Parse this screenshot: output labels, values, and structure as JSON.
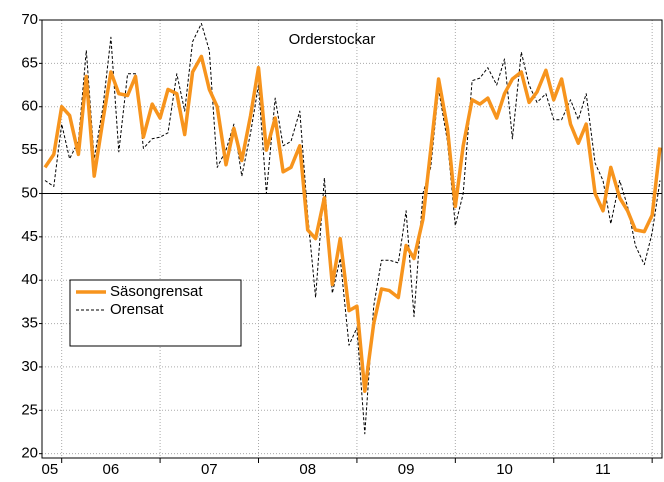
{
  "chart_data": {
    "type": "line",
    "title": "Orderstockar",
    "x": [
      2005.83,
      2005.92,
      2006.0,
      2006.08,
      2006.17,
      2006.25,
      2006.33,
      2006.42,
      2006.5,
      2006.58,
      2006.67,
      2006.75,
      2006.83,
      2006.92,
      2007.0,
      2007.08,
      2007.17,
      2007.25,
      2007.33,
      2007.42,
      2007.5,
      2007.58,
      2007.67,
      2007.75,
      2007.83,
      2007.92,
      2008.0,
      2008.08,
      2008.17,
      2008.25,
      2008.33,
      2008.42,
      2008.5,
      2008.58,
      2008.67,
      2008.75,
      2008.83,
      2008.92,
      2009.0,
      2009.08,
      2009.17,
      2009.25,
      2009.33,
      2009.42,
      2009.5,
      2009.58,
      2009.67,
      2009.75,
      2009.83,
      2009.92,
      2010.0,
      2010.08,
      2010.17,
      2010.25,
      2010.33,
      2010.42,
      2010.5,
      2010.58,
      2010.67,
      2010.75,
      2010.83,
      2010.92,
      2011.0,
      2011.08,
      2011.17,
      2011.25,
      2011.33,
      2011.42,
      2011.5,
      2011.58,
      2011.67,
      2011.75,
      2011.83,
      2011.92,
      2012.0,
      2012.08
    ],
    "series": [
      {
        "name": "Säsongrensat",
        "color": "#f7941d",
        "dash": false,
        "width": 3.5,
        "values": [
          53,
          54.5,
          60,
          59,
          54.5,
          63.5,
          52,
          58.5,
          64,
          61.5,
          61.3,
          63.5,
          56.5,
          60.3,
          58.7,
          62,
          61.5,
          56.8,
          64,
          65.8,
          62,
          60,
          53.3,
          57.5,
          53.8,
          59,
          64.5,
          55,
          58.7,
          52.5,
          53,
          55.5,
          45.8,
          44.8,
          49.5,
          39.5,
          44.8,
          36.5,
          37,
          27.2,
          35,
          39,
          38.8,
          38,
          44,
          42.5,
          47,
          55,
          63.2,
          57.5,
          48.5,
          55.5,
          60.8,
          60.3,
          61,
          58.7,
          61.5,
          63.2,
          64,
          60.5,
          61.7,
          64.2,
          60.8,
          63.2,
          58,
          55.8,
          58,
          50,
          48,
          53,
          49.5,
          48,
          45.8,
          45.6,
          47.5,
          55.3
        ]
      },
      {
        "name": "Orensat",
        "color": "#000000",
        "dash": true,
        "width": 1,
        "values": [
          51.5,
          50.8,
          58,
          54,
          56,
          66.5,
          54,
          60,
          68,
          54.8,
          63.8,
          63.8,
          55.2,
          56.3,
          56.5,
          57,
          63.8,
          59.5,
          67.5,
          69.6,
          66.5,
          53,
          55,
          58,
          52,
          57,
          62.5,
          50,
          61,
          55.5,
          56,
          59.5,
          47.5,
          38,
          51.8,
          38.5,
          42.5,
          32.5,
          34.5,
          22.3,
          37,
          42.3,
          42.3,
          42,
          48,
          35.8,
          50,
          53,
          62,
          56,
          46.3,
          50,
          63,
          63.3,
          64.5,
          62.5,
          65.5,
          56.3,
          66.3,
          62.5,
          60.5,
          61.5,
          58.5,
          58.5,
          60.8,
          58.5,
          61.5,
          53.5,
          51.5,
          46.5,
          51.5,
          48.5,
          44,
          41.8,
          45.5,
          51.5
        ]
      }
    ],
    "xlim": [
      2005.8,
      2012.1
    ],
    "xticks": [
      {
        "value": 2005.88,
        "label": "05"
      },
      {
        "value": 2006.5,
        "label": "06"
      },
      {
        "value": 2007.5,
        "label": "07"
      },
      {
        "value": 2008.5,
        "label": "08"
      },
      {
        "value": 2009.5,
        "label": "09"
      },
      {
        "value": 2010.5,
        "label": "10"
      },
      {
        "value": 2011.5,
        "label": "11"
      }
    ],
    "xgrid": [
      2006,
      2007,
      2008,
      2009,
      2010,
      2011,
      2012
    ],
    "ylim": [
      19.5,
      70
    ],
    "yticks": [
      20,
      25,
      30,
      35,
      40,
      45,
      50,
      55,
      60,
      65,
      70
    ],
    "reference_line": 50,
    "grid": true
  }
}
